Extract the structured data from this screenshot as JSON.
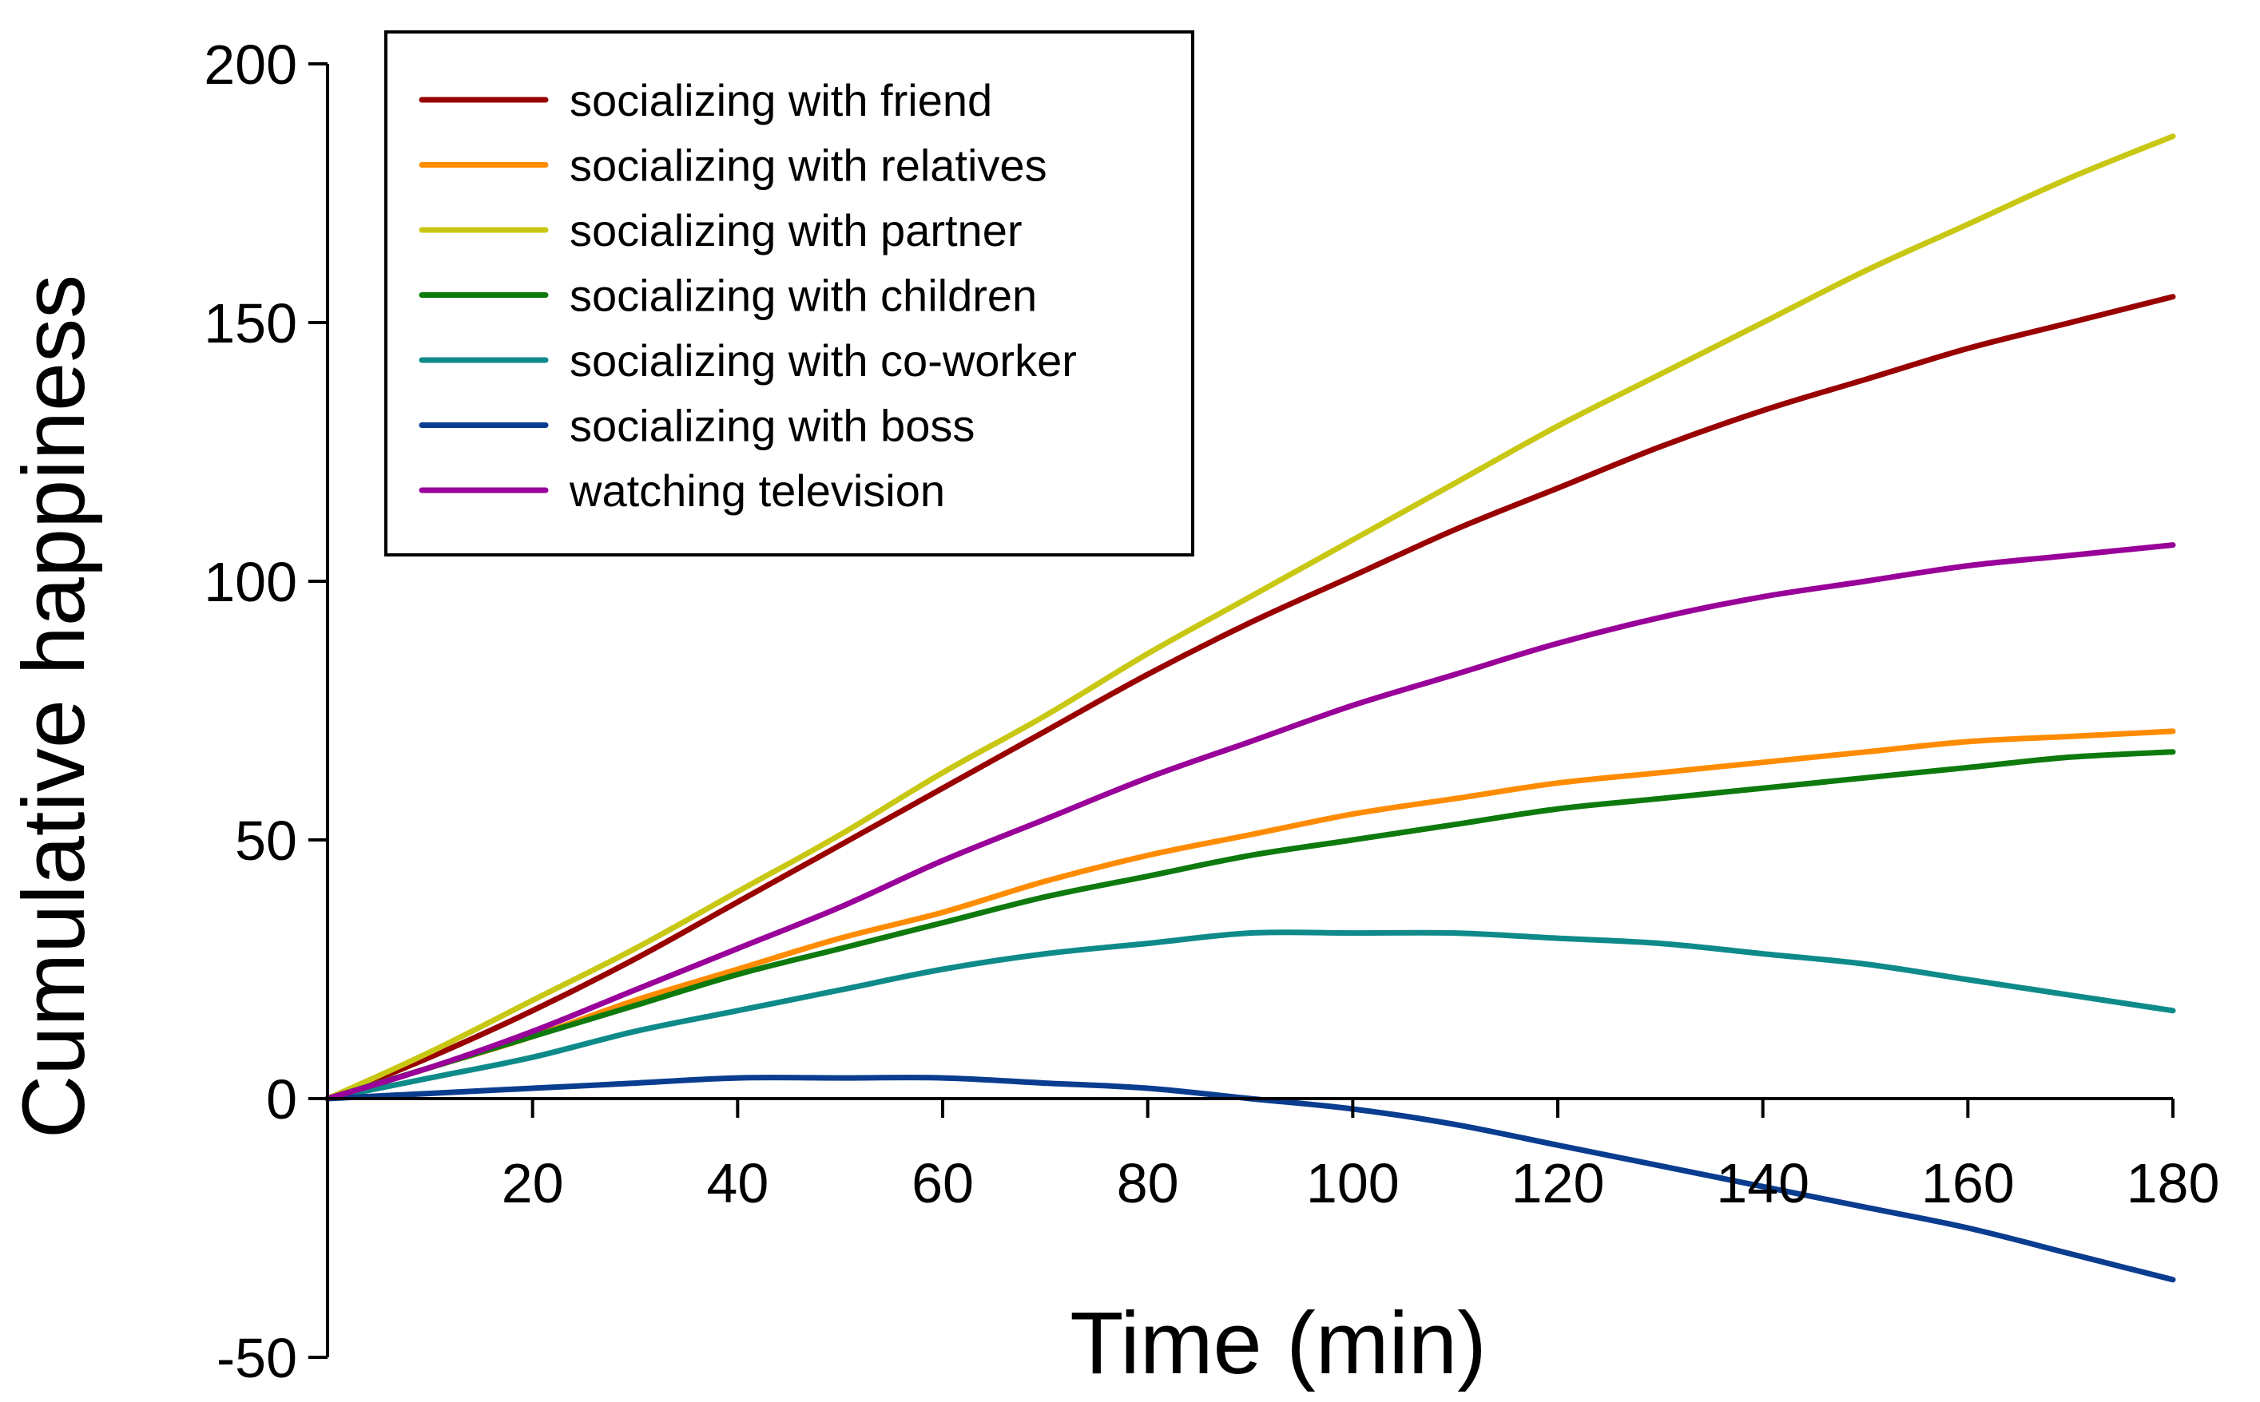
{
  "chart_data": {
    "type": "line",
    "title": "",
    "xlabel": "Time (min)",
    "ylabel": "Cumulative happiness",
    "xlim": [
      0,
      180
    ],
    "ylim": [
      -50,
      200
    ],
    "x_ticks": [
      20,
      40,
      60,
      80,
      100,
      120,
      140,
      160,
      180
    ],
    "y_ticks": [
      -50,
      0,
      50,
      100,
      150,
      200
    ],
    "grid": false,
    "legend_position": "top-left",
    "x": [
      0,
      10,
      20,
      30,
      40,
      50,
      60,
      70,
      80,
      90,
      100,
      110,
      120,
      130,
      140,
      150,
      160,
      170,
      180
    ],
    "series": [
      {
        "name": "socializing with friend",
        "color": "#990000",
        "values": [
          0,
          8,
          17,
          27,
          38,
          49,
          60,
          71,
          82,
          92,
          101,
          110,
          118,
          126,
          133,
          139,
          145,
          150,
          155
        ]
      },
      {
        "name": "socializing with relatives",
        "color": "#ff8c00",
        "values": [
          0,
          6,
          12,
          19,
          25,
          31,
          36,
          42,
          47,
          51,
          55,
          58,
          61,
          63,
          65,
          67,
          69,
          70,
          71
        ]
      },
      {
        "name": "socializing with partner",
        "color": "#c8c814",
        "values": [
          0,
          9,
          19,
          29,
          40,
          51,
          63,
          74,
          86,
          97,
          108,
          119,
          130,
          140,
          150,
          160,
          169,
          178,
          186
        ]
      },
      {
        "name": "socializing with children",
        "color": "#0e7a0e",
        "values": [
          0,
          6,
          12,
          18,
          24,
          29,
          34,
          39,
          43,
          47,
          50,
          53,
          56,
          58,
          60,
          62,
          64,
          66,
          67
        ]
      },
      {
        "name": "socializing with co-worker",
        "color": "#0e8a8a",
        "values": [
          0,
          4,
          8,
          13,
          17,
          21,
          25,
          28,
          30,
          32,
          32,
          32,
          31,
          30,
          28,
          26,
          23,
          20,
          17
        ]
      },
      {
        "name": "socializing with boss",
        "color": "#0a3d8f",
        "values": [
          0,
          1,
          2,
          3,
          4,
          4,
          4,
          3,
          2,
          0,
          -2,
          -5,
          -9,
          -13,
          -17,
          -21,
          -25,
          -30,
          -35
        ]
      },
      {
        "name": "watching television",
        "color": "#990099",
        "values": [
          0,
          6,
          13,
          21,
          29,
          37,
          46,
          54,
          62,
          69,
          76,
          82,
          88,
          93,
          97,
          100,
          103,
          105,
          107
        ]
      }
    ]
  }
}
